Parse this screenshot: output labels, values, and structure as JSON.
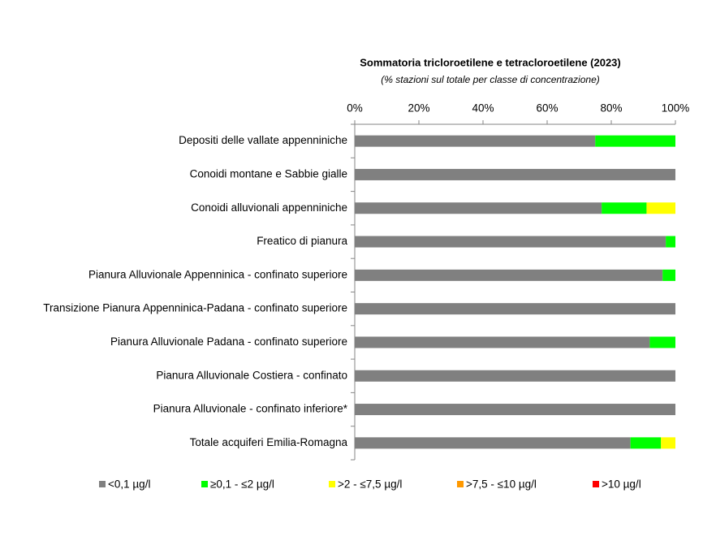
{
  "chart_data": {
    "type": "stacked-horizontal-bar",
    "title": "Sommatoria tricloroetilene e tetracloroetilene (2023)",
    "subtitle": "(% stazioni sul totale per classe di concentrazione)",
    "categories": [
      "Depositi delle vallate appenniniche",
      "Conoidi montane e Sabbie gialle",
      "Conoidi alluvionali appenniniche",
      "Freatico di pianura",
      "Pianura Alluvionale Appenninica - confinato superiore",
      "Transizione Pianura Appenninica-Padana - confinato superiore",
      "Pianura Alluvionale Padana - confinato superiore",
      "Pianura Alluvionale Costiera - confinato",
      "Pianura Alluvionale - confinato inferiore*",
      "Totale acquiferi Emilia-Romagna"
    ],
    "series": [
      {
        "name": "<0,1 µg/l",
        "color": "#808080",
        "values": [
          75,
          100,
          77,
          97,
          96,
          100,
          92,
          100,
          100,
          86
        ]
      },
      {
        "name": "≥0,1 - ≤2 µg/l",
        "color": "#00ff00",
        "values": [
          25,
          0,
          14,
          3,
          4,
          0,
          8,
          0,
          0,
          9.5
        ]
      },
      {
        "name": ">2 - ≤7,5 µg/l",
        "color": "#ffff00",
        "values": [
          0,
          0,
          9,
          0,
          0,
          0,
          0,
          0,
          0,
          4.5
        ]
      },
      {
        "name": ">7,5 - ≤10 µg/l",
        "color": "#ff9900",
        "values": [
          0,
          0,
          0,
          0,
          0,
          0,
          0,
          0,
          0,
          0
        ]
      },
      {
        "name": ">10 µg/l",
        "color": "#ff0000",
        "values": [
          0,
          0,
          0,
          0,
          0,
          0,
          0,
          0,
          0,
          0
        ]
      }
    ],
    "xlim": [
      0,
      100
    ],
    "xticks": [
      {
        "value": 0,
        "label": "0%"
      },
      {
        "value": 20,
        "label": "20%"
      },
      {
        "value": 40,
        "label": "40%"
      },
      {
        "value": 60,
        "label": "60%"
      },
      {
        "value": 80,
        "label": "80%"
      },
      {
        "value": 100,
        "label": "100%"
      }
    ],
    "legend": "bottom"
  }
}
